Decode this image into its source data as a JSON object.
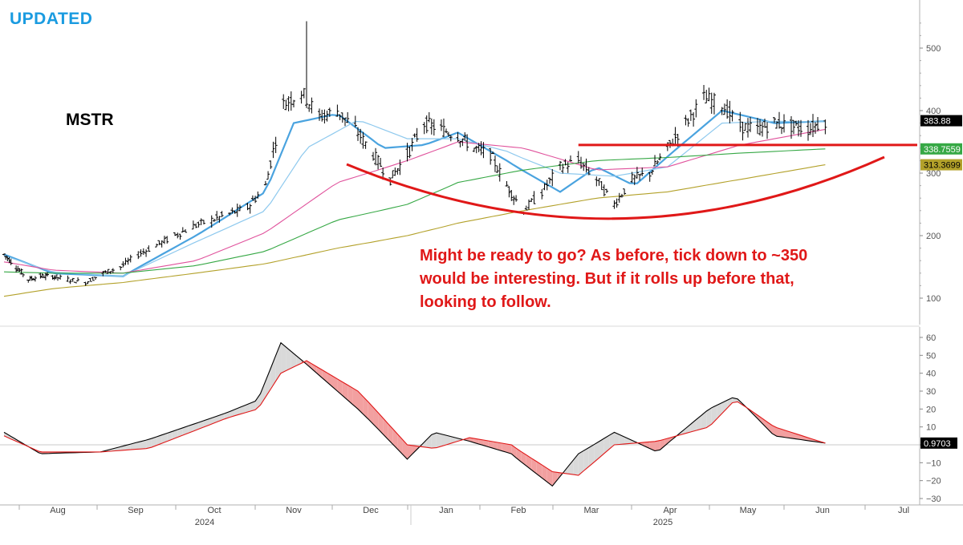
{
  "header": {
    "updated_label": "UPDATED",
    "ticker": "MSTR"
  },
  "annotation": {
    "lines": [
      "Might be ready to go? As before, tick down to ~350",
      "would be interesting. But if it rolls up before that,",
      "looking to follow."
    ],
    "color": "#e01818"
  },
  "colors": {
    "price_bars": "#000000",
    "ma_fast": "#4aa3df",
    "ma_medium": "#8ec9ee",
    "ma_pink": "#e0529c",
    "ma_green": "#36a845",
    "ma_olive": "#b3a12a",
    "annotation_red": "#e01818",
    "updated_blue": "#1a9be0"
  },
  "chart_data": [
    {
      "type": "line",
      "subtype": "ohlc-bars-with-moving-averages",
      "title": "MSTR",
      "y_axis_side": "right",
      "y_ticks": [
        100,
        200,
        300,
        400,
        500
      ],
      "ylim": [
        73,
        560
      ],
      "x_months": [
        "Aug",
        "Sep",
        "Oct",
        "Nov",
        "Dec",
        "Jan",
        "Feb",
        "Mar",
        "Apr",
        "May",
        "Jun",
        "Jul"
      ],
      "x_years": [
        "2024",
        "2025"
      ],
      "price_path": {
        "x": [
          "2024-07-15",
          "2024-07-22",
          "2024-07-29",
          "2024-08-05",
          "2024-08-12",
          "2024-08-19",
          "2024-08-26",
          "2024-09-02",
          "2024-09-09",
          "2024-09-16",
          "2024-09-23",
          "2024-09-30",
          "2024-10-07",
          "2024-10-14",
          "2024-10-21",
          "2024-10-28",
          "2024-11-04",
          "2024-11-11",
          "2024-11-18",
          "2024-11-25",
          "2024-12-02",
          "2024-12-09",
          "2024-12-16",
          "2024-12-23",
          "2024-12-30",
          "2025-01-06",
          "2025-01-13",
          "2025-01-20",
          "2025-01-27",
          "2025-02-03",
          "2025-02-10",
          "2025-02-17",
          "2025-02-24",
          "2025-03-03",
          "2025-03-10",
          "2025-03-17",
          "2025-03-24",
          "2025-03-31",
          "2025-04-07",
          "2025-04-14",
          "2025-04-21",
          "2025-04-28",
          "2025-05-05",
          "2025-05-12",
          "2025-05-19",
          "2025-05-26",
          "2025-06-02",
          "2025-06-09",
          "2025-06-16"
        ],
        "y": [
          170,
          150,
          130,
          135,
          135,
          130,
          125,
          140,
          150,
          170,
          185,
          200,
          215,
          225,
          235,
          245,
          280,
          410,
          430,
          390,
          400,
          370,
          330,
          290,
          330,
          380,
          370,
          360,
          340,
          330,
          280,
          240,
          270,
          310,
          320,
          290,
          250,
          290,
          300,
          340,
          380,
          420,
          410,
          375,
          370,
          380,
          375,
          370,
          383.88
        ]
      },
      "series": [
        {
          "name": "",
          "color": "#4aa3df",
          "x": [
            "2024-07-15",
            "2024-08-12",
            "2024-09-10",
            "2024-10-08",
            "2024-11-04",
            "2024-11-15",
            "2024-12-02",
            "2024-12-20",
            "2025-01-06",
            "2025-01-20",
            "2025-02-10",
            "2025-03-03",
            "2025-03-17",
            "2025-04-01",
            "2025-04-15",
            "2025-05-05",
            "2025-05-26",
            "2025-06-16"
          ],
          "y": [
            170,
            140,
            135,
            200,
            270,
            380,
            395,
            340,
            345,
            365,
            320,
            270,
            310,
            280,
            330,
            400,
            380,
            383
          ]
        },
        {
          "name": "",
          "color": "#8ec9ee",
          "x": [
            "2024-07-15",
            "2024-08-12",
            "2024-09-10",
            "2024-10-08",
            "2024-11-04",
            "2024-11-20",
            "2024-12-10",
            "2024-12-30",
            "2025-01-20",
            "2025-02-10",
            "2025-03-03",
            "2025-03-24",
            "2025-04-14",
            "2025-05-05",
            "2025-05-26",
            "2025-06-16"
          ],
          "y": [
            168,
            142,
            135,
            190,
            240,
            340,
            385,
            355,
            355,
            335,
            300,
            295,
            310,
            380,
            383,
            382
          ]
        },
        {
          "name": "",
          "color": "#e0529c",
          "x": [
            "2024-07-15",
            "2024-08-12",
            "2024-09-10",
            "2024-10-08",
            "2024-11-04",
            "2024-12-02",
            "2024-12-30",
            "2025-01-20",
            "2025-02-17",
            "2025-03-17",
            "2025-04-14",
            "2025-05-12",
            "2025-06-16"
          ],
          "y": [
            158,
            145,
            140,
            160,
            205,
            285,
            320,
            350,
            340,
            305,
            310,
            345,
            370
          ]
        },
        {
          "name": "",
          "color": "#36a845",
          "x": [
            "2024-07-15",
            "2024-08-12",
            "2024-09-10",
            "2024-10-08",
            "2024-11-04",
            "2024-12-02",
            "2024-12-30",
            "2025-01-20",
            "2025-02-17",
            "2025-03-17",
            "2025-04-14",
            "2025-05-12",
            "2025-06-16"
          ],
          "y": [
            142,
            140,
            140,
            152,
            175,
            225,
            250,
            285,
            305,
            320,
            325,
            332,
            338.7559
          ]
        },
        {
          "name": "",
          "color": "#b3a12a",
          "x": [
            "2024-07-15",
            "2024-08-12",
            "2024-09-10",
            "2024-10-08",
            "2024-11-04",
            "2024-12-02",
            "2024-12-30",
            "2025-01-20",
            "2025-02-17",
            "2025-03-17",
            "2025-04-14",
            "2025-05-12",
            "2025-06-16"
          ],
          "y": [
            103,
            115,
            125,
            140,
            155,
            180,
            200,
            220,
            240,
            260,
            270,
            290,
            313.3699
          ]
        }
      ],
      "last_values": [
        {
          "label": "383.88",
          "value": 383.88,
          "bg": "#000000",
          "fg": "#ffffff"
        },
        {
          "label": "338.7559",
          "value": 338.7559,
          "bg": "#36a845",
          "fg": "#ffffff"
        },
        {
          "label": "313.3699",
          "value": 313.3699,
          "bg": "#b3a12a",
          "fg": "#000000"
        }
      ],
      "annotations": {
        "resistance_level": 345,
        "resistance_from": "2025-03-10"
      }
    },
    {
      "type": "area",
      "subtype": "oscillator-two-lines-with-shaded-difference",
      "y_axis_side": "right",
      "y_ticks": [
        -30,
        -20,
        -10,
        0,
        10,
        20,
        30,
        40,
        50,
        60
      ],
      "ylim": [
        -32,
        64
      ],
      "zero_line": true,
      "last_value": {
        "label": "0.9703",
        "value": 0.9703
      },
      "series": [
        {
          "name": "",
          "color": "#000000",
          "x": [
            "2024-07-15",
            "2024-08-05",
            "2024-09-01",
            "2024-09-20",
            "2024-10-20",
            "2024-11-01",
            "2024-11-10",
            "2024-11-20",
            "2024-12-10",
            "2024-12-30",
            "2025-01-10",
            "2025-01-25",
            "2025-02-12",
            "2025-02-28",
            "2025-03-10",
            "2025-03-24",
            "2025-04-10",
            "2025-04-30",
            "2025-05-10",
            "2025-05-26",
            "2025-06-16"
          ],
          "y": [
            7,
            -5,
            -4,
            3,
            18,
            25,
            57,
            45,
            20,
            -8,
            7,
            2,
            -5,
            -23,
            -5,
            7,
            -4,
            20,
            27,
            5,
            0.9703
          ]
        },
        {
          "name": "",
          "color": "#e01818",
          "x": [
            "2024-07-15",
            "2024-08-05",
            "2024-09-01",
            "2024-09-20",
            "2024-10-20",
            "2024-11-01",
            "2024-11-10",
            "2024-11-20",
            "2024-12-10",
            "2024-12-30",
            "2025-01-10",
            "2025-01-25",
            "2025-02-12",
            "2025-02-28",
            "2025-03-10",
            "2025-03-24",
            "2025-04-10",
            "2025-04-30",
            "2025-05-10",
            "2025-05-26",
            "2025-06-16"
          ],
          "y": [
            5,
            -4,
            -4,
            -2,
            15,
            20,
            40,
            47,
            30,
            0,
            -2,
            4,
            0,
            -15,
            -17,
            0,
            2,
            10,
            25,
            10,
            0.9703
          ]
        }
      ]
    }
  ]
}
